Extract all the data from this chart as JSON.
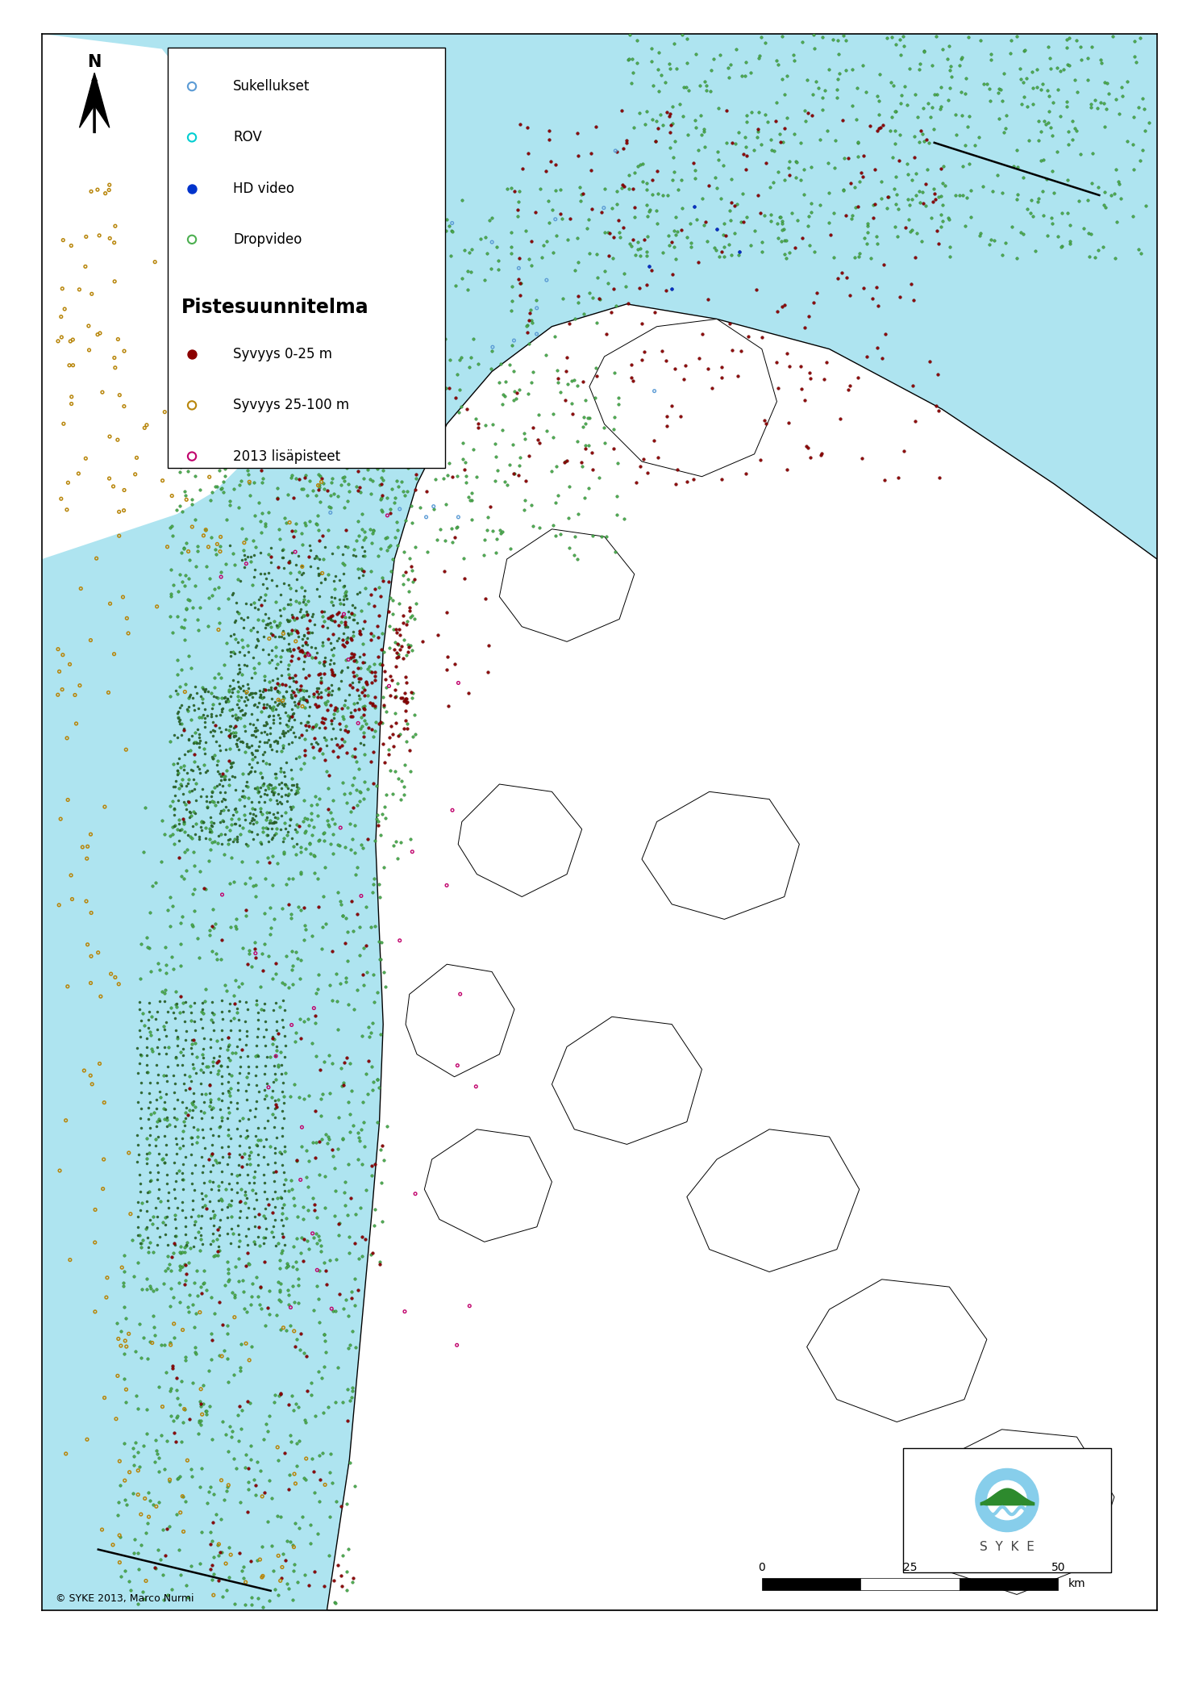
{
  "title": "Pistesuunnitelma",
  "legend_items_top": [
    {
      "label": "Sukellukset",
      "color": "#5B9BD5",
      "filled": false
    },
    {
      "label": "ROV",
      "color": "#00CED1",
      "filled": false
    },
    {
      "label": "HD video",
      "color": "#0033CC",
      "filled": true
    },
    {
      "label": "Dropvideo",
      "color": "#4CAF50",
      "filled": false
    }
  ],
  "legend_items_bottom": [
    {
      "label": "Syvyys 0-25 m",
      "color": "#8B0000",
      "filled": true
    },
    {
      "label": "Syvyys 25-100 m",
      "color": "#DAA520",
      "filled": false
    },
    {
      "label": "2013 lisäpisteet",
      "color": "#C0006B",
      "filled": false
    }
  ],
  "copyright_text": "© SYKE 2013, Marco Nurmi",
  "background_color": "#FFFFFF",
  "sea_color": "#AEE4F0",
  "land_color": "#FFFFFF",
  "border_color": "#000000"
}
